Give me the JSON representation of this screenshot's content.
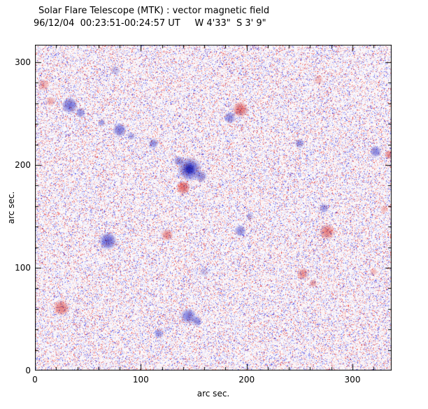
{
  "chart_data": {
    "type": "heatmap",
    "title": "Solar Flare Telescope (MTK) : vector magnetic field",
    "subtitle": "96/12/04  00:23:51-00:24:57 UT     W 4'33\"  S 3' 9\"",
    "xlabel": "arc sec.",
    "ylabel": "arc sec.",
    "xlim": [
      0,
      337
    ],
    "ylim": [
      0,
      317
    ],
    "xticks": [
      0,
      100,
      200,
      300
    ],
    "yticks": [
      0,
      100,
      200,
      300
    ],
    "minor_tick_interval": 20,
    "legend": "none",
    "grid": false,
    "colors": {
      "positive_polarity": "#e14b4b",
      "negative_polarity": "#4646d2",
      "background": "#ffffff",
      "axis": "#000000"
    },
    "noise": {
      "seed": 987654,
      "style": "salt-pepper red/blue speckle"
    },
    "features": [
      {
        "x": 33,
        "y": 258,
        "r": 8,
        "p": -1,
        "a": 0.75
      },
      {
        "x": 43,
        "y": 251,
        "r": 5,
        "p": -1,
        "a": 0.6
      },
      {
        "x": 63,
        "y": 241,
        "r": 4,
        "p": -1,
        "a": 0.5
      },
      {
        "x": 80,
        "y": 234,
        "r": 7,
        "p": -1,
        "a": 0.7
      },
      {
        "x": 91,
        "y": 228,
        "r": 4,
        "p": -1,
        "a": 0.5
      },
      {
        "x": 112,
        "y": 221,
        "r": 5,
        "p": -1,
        "a": 0.6
      },
      {
        "x": 146,
        "y": 196,
        "r": 12,
        "p": -1,
        "a": 0.85
      },
      {
        "x": 146,
        "y": 196,
        "r": 6,
        "p": -1,
        "a": 0.9
      },
      {
        "x": 136,
        "y": 204,
        "r": 5,
        "p": -1,
        "a": 0.6
      },
      {
        "x": 157,
        "y": 189,
        "r": 6,
        "p": -1,
        "a": 0.6
      },
      {
        "x": 184,
        "y": 246,
        "r": 6,
        "p": -1,
        "a": 0.6
      },
      {
        "x": 250,
        "y": 221,
        "r": 5,
        "p": -1,
        "a": 0.55
      },
      {
        "x": 322,
        "y": 213,
        "r": 6,
        "p": -1,
        "a": 0.65
      },
      {
        "x": 69,
        "y": 126,
        "r": 9,
        "p": -1,
        "a": 0.8
      },
      {
        "x": 194,
        "y": 136,
        "r": 6,
        "p": -1,
        "a": 0.6
      },
      {
        "x": 203,
        "y": 150,
        "r": 4,
        "p": -1,
        "a": 0.4
      },
      {
        "x": 273,
        "y": 158,
        "r": 5,
        "p": -1,
        "a": 0.5
      },
      {
        "x": 145,
        "y": 53,
        "r": 8,
        "p": -1,
        "a": 0.7
      },
      {
        "x": 153,
        "y": 48,
        "r": 5,
        "p": -1,
        "a": 0.6
      },
      {
        "x": 117,
        "y": 36,
        "r": 5,
        "p": -1,
        "a": 0.55
      },
      {
        "x": 76,
        "y": 292,
        "r": 5,
        "p": -1,
        "a": 0.35
      },
      {
        "x": 160,
        "y": 96,
        "r": 5,
        "p": -1,
        "a": 0.3
      },
      {
        "x": 194,
        "y": 254,
        "r": 8,
        "p": 1,
        "a": 0.75
      },
      {
        "x": 140,
        "y": 178,
        "r": 7,
        "p": 1,
        "a": 0.8
      },
      {
        "x": 125,
        "y": 132,
        "r": 6,
        "p": 1,
        "a": 0.65
      },
      {
        "x": 276,
        "y": 135,
        "r": 8,
        "p": 1,
        "a": 0.7
      },
      {
        "x": 253,
        "y": 94,
        "r": 6,
        "p": 1,
        "a": 0.6
      },
      {
        "x": 263,
        "y": 85,
        "r": 4,
        "p": 1,
        "a": 0.5
      },
      {
        "x": 25,
        "y": 61,
        "r": 8,
        "p": 1,
        "a": 0.7
      },
      {
        "x": 335,
        "y": 210,
        "r": 5,
        "p": 1,
        "a": 0.6
      },
      {
        "x": 8,
        "y": 278,
        "r": 6,
        "p": 1,
        "a": 0.45
      },
      {
        "x": 15,
        "y": 262,
        "r": 5,
        "p": 1,
        "a": 0.45
      },
      {
        "x": 330,
        "y": 157,
        "r": 4,
        "p": 1,
        "a": 0.4
      },
      {
        "x": 320,
        "y": 96,
        "r": 4,
        "p": 1,
        "a": 0.4
      },
      {
        "x": 268,
        "y": 283,
        "r": 5,
        "p": 1,
        "a": 0.35
      }
    ]
  }
}
